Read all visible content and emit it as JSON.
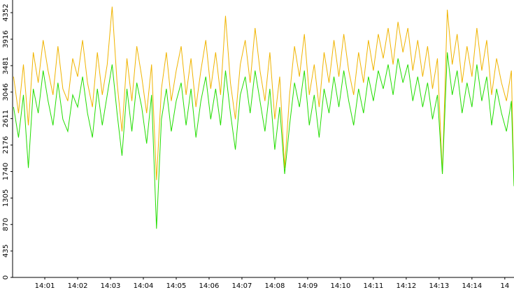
{
  "chart_data": {
    "type": "line",
    "x": [
      0.05,
      0.2,
      0.35,
      0.5,
      0.65,
      0.8,
      0.95,
      1.1,
      1.25,
      1.4,
      1.55,
      1.7,
      1.85,
      2,
      2.15,
      2.3,
      2.45,
      2.6,
      2.75,
      2.9,
      3.05,
      3.2,
      3.35,
      3.5,
      3.65,
      3.8,
      3.95,
      4.1,
      4.25,
      4.4,
      4.55,
      4.7,
      4.85,
      5,
      5.15,
      5.3,
      5.45,
      5.6,
      5.75,
      5.9,
      6.05,
      6.2,
      6.35,
      6.5,
      6.65,
      6.8,
      6.95,
      7.1,
      7.25,
      7.4,
      7.55,
      7.7,
      7.85,
      8,
      8.15,
      8.3,
      8.45,
      8.6,
      8.75,
      8.9,
      9.05,
      9.2,
      9.35,
      9.5,
      9.65,
      9.8,
      9.95,
      10.1,
      10.25,
      10.4,
      10.55,
      10.7,
      10.85,
      11,
      11.15,
      11.3,
      11.45,
      11.6,
      11.75,
      11.9,
      12.05,
      12.2,
      12.35,
      12.5,
      12.65,
      12.8,
      12.95,
      13.1,
      13.25,
      13.4,
      13.55,
      13.7,
      13.85,
      14,
      14.15,
      14.3,
      14.45,
      14.6,
      14.75,
      14.9,
      15.05,
      15.2,
      15.28
    ],
    "series": [
      {
        "color": "#f0b400",
        "values": [
          3300,
          2700,
          3500,
          2500,
          3700,
          3200,
          3900,
          3400,
          3000,
          3800,
          3100,
          2900,
          3600,
          3300,
          3900,
          3200,
          2800,
          3700,
          3000,
          3500,
          4450,
          3200,
          2400,
          3600,
          2900,
          3800,
          3300,
          2700,
          3500,
          1600,
          3100,
          3700,
          2900,
          3400,
          3800,
          3000,
          3600,
          2800,
          3400,
          3900,
          3100,
          3700,
          3000,
          4300,
          3200,
          2600,
          3500,
          3900,
          3200,
          4100,
          3400,
          2900,
          3700,
          2600,
          3300,
          1800,
          3000,
          3800,
          3300,
          4000,
          3000,
          3500,
          2800,
          3700,
          3200,
          3900,
          3300,
          4000,
          3400,
          3000,
          3700,
          3200,
          3900,
          3400,
          4000,
          3600,
          4100,
          3500,
          4200,
          3700,
          4100,
          3400,
          3900,
          3300,
          3800,
          3100,
          3600,
          1700,
          4400,
          3500,
          4000,
          3200,
          3800,
          3300,
          4100,
          3400,
          3900,
          3000,
          3600,
          3200,
          2900,
          3400,
          1500
        ]
      },
      {
        "color": "#22dd00",
        "values": [
          2800,
          2300,
          3000,
          1800,
          3100,
          2700,
          3400,
          2900,
          2500,
          3200,
          2600,
          2400,
          3000,
          2800,
          3300,
          2700,
          2300,
          3100,
          2500,
          3000,
          3500,
          2700,
          2000,
          3100,
          2400,
          3200,
          2800,
          2200,
          3000,
          800,
          2600,
          3100,
          2400,
          2900,
          3200,
          2500,
          3100,
          2300,
          2900,
          3300,
          2600,
          3100,
          2500,
          3400,
          2700,
          2100,
          3000,
          3300,
          2700,
          3400,
          2900,
          2400,
          3100,
          2100,
          2800,
          1700,
          2500,
          3200,
          2800,
          3400,
          2500,
          3000,
          2300,
          3100,
          2700,
          3300,
          2800,
          3400,
          2900,
          2500,
          3100,
          2700,
          3300,
          2900,
          3400,
          3100,
          3500,
          3000,
          3600,
          3200,
          3500,
          2900,
          3300,
          2800,
          3200,
          2600,
          3000,
          1700,
          3700,
          3000,
          3400,
          2700,
          3200,
          2800,
          3500,
          2900,
          3300,
          2500,
          3100,
          2700,
          2400,
          2900,
          1500
        ]
      }
    ],
    "xlim": [
      0.02,
      15.28
    ],
    "xticks": [
      {
        "value": 1,
        "label": "14:01"
      },
      {
        "value": 2,
        "label": "14:02"
      },
      {
        "value": 3,
        "label": "14:03"
      },
      {
        "value": 4,
        "label": "14:04"
      },
      {
        "value": 5,
        "label": "14:05"
      },
      {
        "value": 6,
        "label": "14:06"
      },
      {
        "value": 7,
        "label": "14:07"
      },
      {
        "value": 8,
        "label": "14:08"
      },
      {
        "value": 9,
        "label": "14:09"
      },
      {
        "value": 10,
        "label": "14:10"
      },
      {
        "value": 11,
        "label": "14:11"
      },
      {
        "value": 12,
        "label": "14:12"
      },
      {
        "value": 13,
        "label": "14:13"
      },
      {
        "value": 14,
        "label": "14:14"
      },
      {
        "value": 15,
        "label": "14"
      }
    ],
    "ylim": [
      0,
      4560
    ],
    "yticks": [
      0,
      435,
      870,
      1305,
      1740,
      2176,
      2611,
      3046,
      3481,
      3916,
      4352
    ]
  }
}
